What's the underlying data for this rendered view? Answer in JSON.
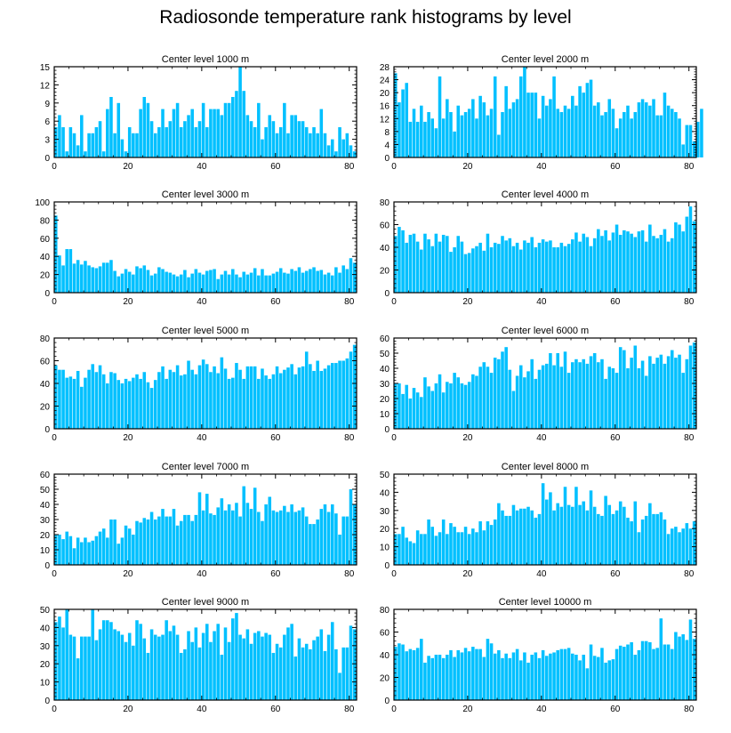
{
  "title": "Radiosonde temperature rank histograms by level",
  "chart_data": [
    {
      "type": "bar",
      "title": "Center level 1000 m",
      "xlim": [
        0,
        82
      ],
      "ylim": [
        0,
        15
      ],
      "yticks": [
        0,
        3,
        6,
        9,
        12,
        15
      ],
      "xticks": [
        0,
        20,
        40,
        60,
        80
      ],
      "values": [
        5,
        7,
        5,
        1,
        5,
        4,
        2,
        7,
        1,
        4,
        4,
        5,
        6,
        1,
        8,
        10,
        4,
        9,
        3,
        1,
        5,
        4,
        4,
        8,
        10,
        9,
        6,
        4,
        5,
        8,
        5,
        6,
        8,
        9,
        5,
        6,
        7,
        8,
        5,
        6,
        9,
        5,
        8,
        8,
        8,
        7,
        9,
        9,
        10,
        11,
        15,
        11,
        7,
        6,
        5,
        9,
        3,
        5,
        7,
        6,
        4,
        5,
        9,
        4,
        7,
        7,
        6,
        6,
        5,
        4,
        5,
        4,
        8,
        4,
        2,
        3,
        1,
        5,
        3,
        4,
        2,
        1
      ]
    },
    {
      "type": "bar",
      "title": "Center level 2000 m",
      "xlim": [
        0,
        82
      ],
      "ylim": [
        0,
        28
      ],
      "yticks": [
        0,
        4,
        8,
        12,
        16,
        20,
        24,
        28
      ],
      "xticks": [
        0,
        20,
        40,
        60,
        80
      ],
      "values": [
        26,
        17,
        21,
        23,
        11,
        15,
        11,
        16,
        11,
        14,
        12,
        9,
        25,
        12,
        18,
        14,
        8,
        16,
        13,
        14,
        15,
        18,
        12,
        19,
        17,
        13,
        15,
        25,
        7,
        14,
        22,
        15,
        17,
        18,
        25,
        28,
        20,
        20,
        20,
        12,
        19,
        16,
        18,
        25,
        15,
        14,
        16,
        15,
        19,
        16,
        22,
        20,
        23,
        24,
        16,
        17,
        13,
        14,
        18,
        15,
        9,
        12,
        14,
        16,
        12,
        14,
        17,
        18,
        17,
        16,
        18,
        13,
        13,
        20,
        16,
        15,
        14,
        12,
        4,
        10,
        10,
        5,
        11,
        15
      ]
    },
    {
      "type": "bar",
      "title": "Center level 3000 m",
      "xlim": [
        0,
        82
      ],
      "ylim": [
        0,
        100
      ],
      "yticks": [
        0,
        20,
        40,
        60,
        80,
        100
      ],
      "xticks": [
        0,
        20,
        40,
        60,
        80
      ],
      "values": [
        85,
        41,
        30,
        48,
        48,
        32,
        36,
        31,
        35,
        30,
        28,
        27,
        29,
        33,
        33,
        36,
        24,
        18,
        21,
        26,
        23,
        20,
        29,
        27,
        30,
        25,
        19,
        21,
        28,
        26,
        23,
        22,
        20,
        18,
        20,
        25,
        17,
        21,
        26,
        22,
        20,
        24,
        25,
        26,
        15,
        20,
        24,
        20,
        26,
        20,
        17,
        23,
        20,
        22,
        27,
        19,
        26,
        19,
        19,
        21,
        23,
        27,
        22,
        21,
        26,
        24,
        28,
        22,
        24,
        26,
        28,
        24,
        25,
        20,
        22,
        19,
        28,
        22,
        30,
        26,
        38,
        33
      ]
    },
    {
      "type": "bar",
      "title": "Center level 4000 m",
      "xlim": [
        0,
        82
      ],
      "ylim": [
        0,
        80
      ],
      "yticks": [
        0,
        20,
        40,
        60,
        80
      ],
      "xticks": [
        0,
        20,
        40,
        60,
        80
      ],
      "values": [
        50,
        58,
        55,
        44,
        51,
        52,
        45,
        38,
        52,
        47,
        41,
        52,
        45,
        51,
        50,
        36,
        40,
        50,
        45,
        34,
        35,
        39,
        41,
        44,
        37,
        52,
        40,
        44,
        43,
        50,
        46,
        48,
        41,
        44,
        38,
        46,
        44,
        49,
        40,
        44,
        47,
        45,
        46,
        40,
        40,
        44,
        41,
        43,
        47,
        53,
        45,
        52,
        49,
        41,
        48,
        56,
        50,
        55,
        46,
        53,
        60,
        51,
        55,
        54,
        52,
        49,
        54,
        55,
        45,
        60,
        50,
        48,
        51,
        56,
        45,
        48,
        62,
        60,
        54,
        67,
        76,
        63
      ]
    },
    {
      "type": "bar",
      "title": "Center level 5000 m",
      "xlim": [
        0,
        82
      ],
      "ylim": [
        0,
        80
      ],
      "yticks": [
        0,
        20,
        40,
        60,
        80
      ],
      "xticks": [
        0,
        20,
        40,
        60,
        80
      ],
      "values": [
        56,
        52,
        52,
        45,
        46,
        44,
        51,
        37,
        45,
        52,
        57,
        50,
        56,
        48,
        40,
        50,
        49,
        43,
        40,
        44,
        42,
        45,
        48,
        44,
        50,
        41,
        36,
        43,
        50,
        55,
        44,
        52,
        50,
        56,
        47,
        48,
        60,
        52,
        48,
        56,
        61,
        57,
        50,
        55,
        49,
        63,
        53,
        44,
        45,
        58,
        52,
        44,
        55,
        55,
        55,
        44,
        53,
        47,
        44,
        48,
        55,
        49,
        52,
        54,
        57,
        48,
        54,
        55,
        68,
        57,
        51,
        60,
        51,
        53,
        56,
        58,
        58,
        60,
        60,
        62,
        68,
        74
      ]
    },
    {
      "type": "bar",
      "title": "Center level 6000 m",
      "xlim": [
        0,
        82
      ],
      "ylim": [
        0,
        60
      ],
      "yticks": [
        0,
        10,
        20,
        30,
        40,
        50,
        60
      ],
      "xticks": [
        0,
        20,
        40,
        60,
        80
      ],
      "values": [
        30,
        30,
        23,
        29,
        20,
        27,
        24,
        21,
        34,
        28,
        25,
        30,
        36,
        24,
        31,
        30,
        37,
        34,
        30,
        29,
        31,
        36,
        35,
        41,
        44,
        41,
        37,
        47,
        46,
        51,
        54,
        39,
        25,
        35,
        42,
        34,
        38,
        46,
        33,
        39,
        42,
        43,
        50,
        42,
        50,
        41,
        51,
        37,
        44,
        46,
        44,
        46,
        43,
        48,
        50,
        44,
        46,
        33,
        41,
        40,
        37,
        54,
        52,
        40,
        47,
        55,
        40,
        45,
        35,
        48,
        43,
        47,
        49,
        43,
        48,
        52,
        47,
        49,
        37,
        46,
        55,
        57
      ]
    },
    {
      "type": "bar",
      "title": "Center level 7000 m",
      "xlim": [
        0,
        82
      ],
      "ylim": [
        0,
        60
      ],
      "yticks": [
        0,
        10,
        20,
        30,
        40,
        50,
        60
      ],
      "xticks": [
        0,
        20,
        40,
        60,
        80
      ],
      "values": [
        20,
        20,
        17,
        22,
        19,
        11,
        18,
        15,
        18,
        15,
        16,
        19,
        22,
        24,
        18,
        30,
        30,
        14,
        18,
        26,
        24,
        20,
        29,
        28,
        31,
        30,
        35,
        30,
        32,
        37,
        32,
        32,
        37,
        26,
        29,
        33,
        33,
        29,
        33,
        48,
        36,
        47,
        34,
        33,
        38,
        44,
        36,
        40,
        36,
        41,
        32,
        52,
        41,
        37,
        51,
        35,
        29,
        40,
        45,
        36,
        35,
        36,
        39,
        35,
        40,
        35,
        36,
        38,
        32,
        27,
        27,
        30,
        37,
        40,
        35,
        40,
        34,
        20,
        32,
        32,
        50,
        40
      ]
    },
    {
      "type": "bar",
      "title": "Center level 8000 m",
      "xlim": [
        0,
        82
      ],
      "ylim": [
        0,
        50
      ],
      "yticks": [
        0,
        10,
        20,
        30,
        40,
        50
      ],
      "xticks": [
        0,
        20,
        40,
        60,
        80
      ],
      "values": [
        17,
        17,
        21,
        15,
        13,
        12,
        19,
        17,
        17,
        25,
        21,
        16,
        18,
        25,
        17,
        23,
        21,
        18,
        18,
        21,
        17,
        20,
        18,
        24,
        19,
        24,
        22,
        25,
        34,
        30,
        27,
        27,
        33,
        30,
        31,
        31,
        32,
        30,
        26,
        28,
        45,
        36,
        40,
        30,
        34,
        32,
        43,
        33,
        32,
        43,
        33,
        35,
        30,
        41,
        32,
        28,
        27,
        38,
        33,
        28,
        30,
        35,
        32,
        26,
        24,
        35,
        18,
        25,
        27,
        34,
        28,
        28,
        29,
        25,
        17,
        20,
        21,
        18,
        20,
        23,
        20,
        24
      ]
    },
    {
      "type": "bar",
      "title": "Center level 9000 m",
      "xlim": [
        0,
        82
      ],
      "ylim": [
        0,
        50
      ],
      "yticks": [
        0,
        10,
        20,
        30,
        40,
        50
      ],
      "xticks": [
        0,
        20,
        40,
        60,
        80
      ],
      "values": [
        43,
        46,
        40,
        50,
        36,
        35,
        23,
        35,
        35,
        35,
        50,
        33,
        39,
        44,
        44,
        43,
        39,
        38,
        36,
        32,
        37,
        30,
        44,
        42,
        34,
        26,
        39,
        36,
        35,
        36,
        44,
        38,
        41,
        36,
        26,
        28,
        38,
        32,
        40,
        29,
        37,
        42,
        32,
        38,
        42,
        25,
        40,
        32,
        45,
        48,
        36,
        34,
        39,
        31,
        37,
        38,
        35,
        37,
        36,
        26,
        31,
        29,
        36,
        40,
        42,
        24,
        34,
        29,
        31,
        28,
        33,
        35,
        39,
        27,
        36,
        43,
        28,
        15,
        29,
        29,
        41,
        39
      ]
    },
    {
      "type": "bar",
      "title": "Center level 10000 m",
      "xlim": [
        0,
        82
      ],
      "ylim": [
        0,
        80
      ],
      "yticks": [
        0,
        20,
        40,
        60,
        80
      ],
      "xticks": [
        0,
        20,
        40,
        60,
        80
      ],
      "values": [
        47,
        50,
        49,
        43,
        45,
        44,
        46,
        54,
        33,
        39,
        37,
        40,
        40,
        37,
        40,
        44,
        38,
        44,
        42,
        46,
        43,
        47,
        45,
        45,
        38,
        54,
        50,
        41,
        44,
        37,
        41,
        37,
        42,
        45,
        35,
        42,
        33,
        40,
        42,
        37,
        44,
        39,
        41,
        42,
        44,
        45,
        45,
        46,
        41,
        40,
        35,
        40,
        28,
        49,
        39,
        38,
        46,
        33,
        35,
        36,
        45,
        48,
        47,
        49,
        51,
        40,
        44,
        52,
        52,
        51,
        45,
        46,
        72,
        49,
        49,
        45,
        60,
        56,
        58,
        53,
        71,
        54
      ]
    }
  ]
}
